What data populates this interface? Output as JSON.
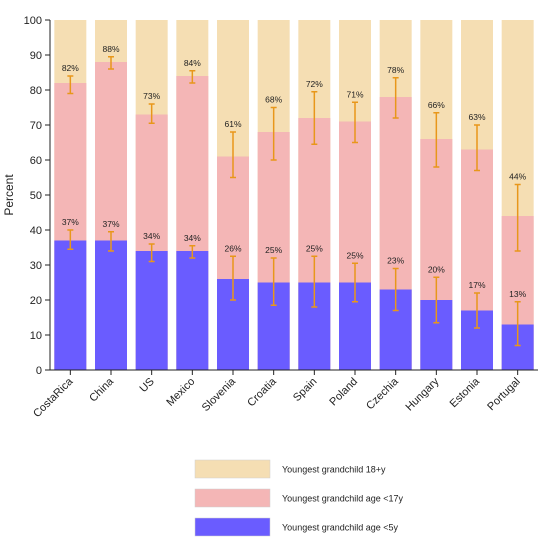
{
  "chart_data": {
    "type": "bar",
    "stacking": "overlay",
    "categories": [
      "CostaRica",
      "China",
      "US",
      "Mexico",
      "Slovenia",
      "Croatia",
      "Spain",
      "Poland",
      "Czechia",
      "Hungary",
      "Estonia",
      "Portugal"
    ],
    "ylabel": "Percent",
    "ylim": [
      0,
      100
    ],
    "yticks": [
      0,
      10,
      20,
      30,
      40,
      50,
      60,
      70,
      80,
      90,
      100
    ],
    "grid": false,
    "legend_position": "bottom",
    "series": [
      {
        "name": "Youngest grandchild 18+y",
        "color": "#f5deb3",
        "values": [
          100,
          100,
          100,
          100,
          100,
          100,
          100,
          100,
          100,
          100,
          100,
          100
        ]
      },
      {
        "name": "Youngest grandchild age <17y",
        "color": "#f4b6b6",
        "values": [
          82,
          88,
          73,
          84,
          61,
          68,
          72,
          71,
          78,
          66,
          63,
          44
        ],
        "labels": [
          "82%",
          "88%",
          "73%",
          "84%",
          "61%",
          "68%",
          "72%",
          "71%",
          "78%",
          "66%",
          "63%",
          "44%"
        ],
        "error_low": [
          79,
          86,
          70.5,
          82,
          55,
          60,
          64.5,
          65,
          72,
          58,
          57,
          34
        ],
        "error_high": [
          84,
          89.5,
          76,
          85.5,
          68,
          75,
          79.5,
          76.5,
          83.5,
          73.5,
          70,
          53
        ]
      },
      {
        "name": "Youngest grandchild age <5y",
        "color": "#6a5cff",
        "values": [
          37,
          37,
          34,
          34,
          26,
          25,
          25,
          25,
          23,
          20,
          17,
          13
        ],
        "labels": [
          "37%",
          "37%",
          "34%",
          "34%",
          "26%",
          "25%",
          "25%",
          "25%",
          "23%",
          "20%",
          "17%",
          "13%"
        ],
        "error_low": [
          34.5,
          34,
          31,
          32,
          20,
          18.5,
          18,
          19.5,
          17,
          13.5,
          12,
          7
        ],
        "error_high": [
          40,
          39.5,
          36,
          35.5,
          32.5,
          32,
          32.5,
          30.5,
          29,
          26.5,
          22,
          19.5
        ]
      }
    ]
  },
  "colors": {
    "axis": "#222222",
    "error_bar": "#e8971a"
  }
}
